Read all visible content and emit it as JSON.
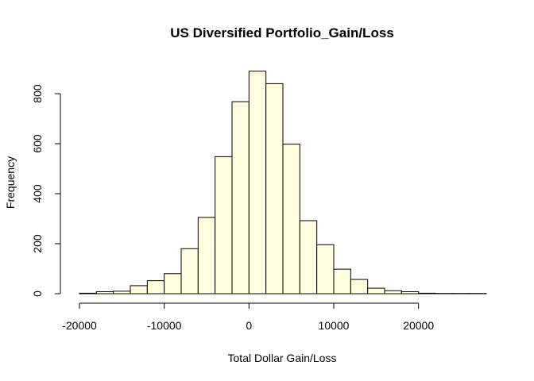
{
  "chart_data": {
    "type": "bar",
    "title": "US Diversified Portfolio_Gain/Loss",
    "xlabel": "Total Dollar Gain/Loss",
    "ylabel": "Frequency",
    "bin_width": 2000,
    "bins": [
      {
        "start": -20000,
        "end": -18000,
        "count": 2
      },
      {
        "start": -18000,
        "end": -16000,
        "count": 8
      },
      {
        "start": -16000,
        "end": -14000,
        "count": 10
      },
      {
        "start": -14000,
        "end": -12000,
        "count": 32
      },
      {
        "start": -12000,
        "end": -10000,
        "count": 52
      },
      {
        "start": -10000,
        "end": -8000,
        "count": 80
      },
      {
        "start": -8000,
        "end": -6000,
        "count": 180
      },
      {
        "start": -6000,
        "end": -4000,
        "count": 305
      },
      {
        "start": -4000,
        "end": -2000,
        "count": 548
      },
      {
        "start": -2000,
        "end": 0,
        "count": 768
      },
      {
        "start": 0,
        "end": 2000,
        "count": 890
      },
      {
        "start": 2000,
        "end": 4000,
        "count": 840
      },
      {
        "start": 4000,
        "end": 6000,
        "count": 598
      },
      {
        "start": 6000,
        "end": 8000,
        "count": 292
      },
      {
        "start": 8000,
        "end": 10000,
        "count": 196
      },
      {
        "start": 10000,
        "end": 12000,
        "count": 98
      },
      {
        "start": 12000,
        "end": 14000,
        "count": 57
      },
      {
        "start": 14000,
        "end": 16000,
        "count": 22
      },
      {
        "start": 16000,
        "end": 18000,
        "count": 12
      },
      {
        "start": 18000,
        "end": 20000,
        "count": 8
      },
      {
        "start": 20000,
        "end": 22000,
        "count": 2
      },
      {
        "start": 22000,
        "end": 24000,
        "count": 1
      },
      {
        "start": 24000,
        "end": 26000,
        "count": 1
      },
      {
        "start": 26000,
        "end": 28000,
        "count": 1
      }
    ],
    "xlim": [
      -20000,
      28000
    ],
    "ylim": [
      0,
      900
    ],
    "x_ticks": [
      -20000,
      -10000,
      0,
      10000,
      20000
    ],
    "x_tick_labels": [
      "-20000",
      "-10000",
      "0",
      "10000",
      "20000"
    ],
    "y_ticks": [
      0,
      200,
      400,
      600,
      800
    ],
    "y_tick_labels": [
      "0",
      "200",
      "400",
      "600",
      "800"
    ],
    "bar_fill": "#ffffe0",
    "bar_stroke": "#000000",
    "grid": false,
    "legend": "none"
  }
}
